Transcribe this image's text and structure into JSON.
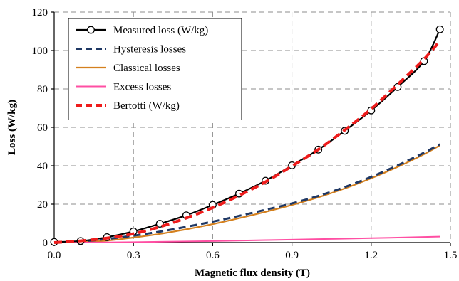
{
  "chart_data": {
    "type": "line",
    "title": "",
    "xlabel": "Magnetic flux density (T)",
    "ylabel": "Loss (W/kg)",
    "xlim": [
      0.0,
      1.5
    ],
    "ylim": [
      0,
      120
    ],
    "x_ticks": [
      0.0,
      0.3,
      0.6,
      0.9,
      1.2,
      1.5
    ],
    "x_tick_labels": [
      "0.0",
      "0.3",
      "0.6",
      "0.9",
      "1.2",
      "1.5"
    ],
    "y_ticks": [
      0,
      20,
      40,
      60,
      80,
      100,
      120
    ],
    "y_tick_labels": [
      "0",
      "20",
      "40",
      "60",
      "80",
      "100",
      "120"
    ],
    "grid": true,
    "legend_position": "top-left",
    "series": [
      {
        "name": "Measured loss (W/kg)",
        "color": "#000000",
        "style": "solid",
        "marker": "circle",
        "x": [
          0.0,
          0.1,
          0.2,
          0.3,
          0.4,
          0.5,
          0.6,
          0.7,
          0.8,
          0.9,
          1.0,
          1.1,
          1.2,
          1.3,
          1.4,
          1.46
        ],
        "y": [
          0.3,
          0.8,
          2.8,
          5.8,
          9.8,
          14.2,
          19.6,
          25.5,
          32.2,
          40.2,
          48.4,
          58.2,
          68.8,
          81.0,
          94.5,
          111.0
        ]
      },
      {
        "name": "Hysteresis losses",
        "color": "#1f3864",
        "style": "dashed",
        "marker": "none",
        "x": [
          0.0,
          0.1,
          0.2,
          0.3,
          0.4,
          0.5,
          0.6,
          0.7,
          0.8,
          0.9,
          1.0,
          1.1,
          1.2,
          1.3,
          1.4,
          1.46
        ],
        "y": [
          0.0,
          0.6,
          1.9,
          3.6,
          5.7,
          8.2,
          10.9,
          13.9,
          17.1,
          20.4,
          24.3,
          28.9,
          34.2,
          40.2,
          46.8,
          51.2
        ]
      },
      {
        "name": "Classical losses",
        "color": "#d4801e",
        "style": "solid",
        "marker": "none",
        "x": [
          0.0,
          0.1,
          0.2,
          0.3,
          0.4,
          0.5,
          0.6,
          0.7,
          0.8,
          0.9,
          1.0,
          1.1,
          1.2,
          1.3,
          1.4,
          1.46
        ],
        "y": [
          0.0,
          0.3,
          1.0,
          2.6,
          4.5,
          6.9,
          9.6,
          12.7,
          16.0,
          19.6,
          23.6,
          28.2,
          33.5,
          39.4,
          46.0,
          50.6
        ]
      },
      {
        "name": "Excess losses",
        "color": "#ff4fa3",
        "style": "solid",
        "marker": "none",
        "x": [
          0.0,
          0.2,
          0.4,
          0.6,
          0.8,
          1.0,
          1.2,
          1.4,
          1.46
        ],
        "y": [
          0.0,
          0.1,
          0.4,
          0.8,
          1.3,
          1.8,
          2.3,
          2.9,
          3.1
        ]
      },
      {
        "name": "Bertotti (W/kg)",
        "color": "#ee1c1c",
        "style": "dashed",
        "marker": "none",
        "x": [
          0.0,
          0.1,
          0.2,
          0.3,
          0.4,
          0.5,
          0.6,
          0.7,
          0.8,
          0.9,
          1.0,
          1.1,
          1.2,
          1.3,
          1.4,
          1.46
        ],
        "y": [
          0.0,
          0.9,
          2.3,
          4.6,
          8.2,
          12.8,
          18.2,
          24.5,
          31.6,
          39.8,
          48.5,
          58.6,
          69.6,
          82.3,
          95.5,
          105.0
        ]
      }
    ]
  }
}
